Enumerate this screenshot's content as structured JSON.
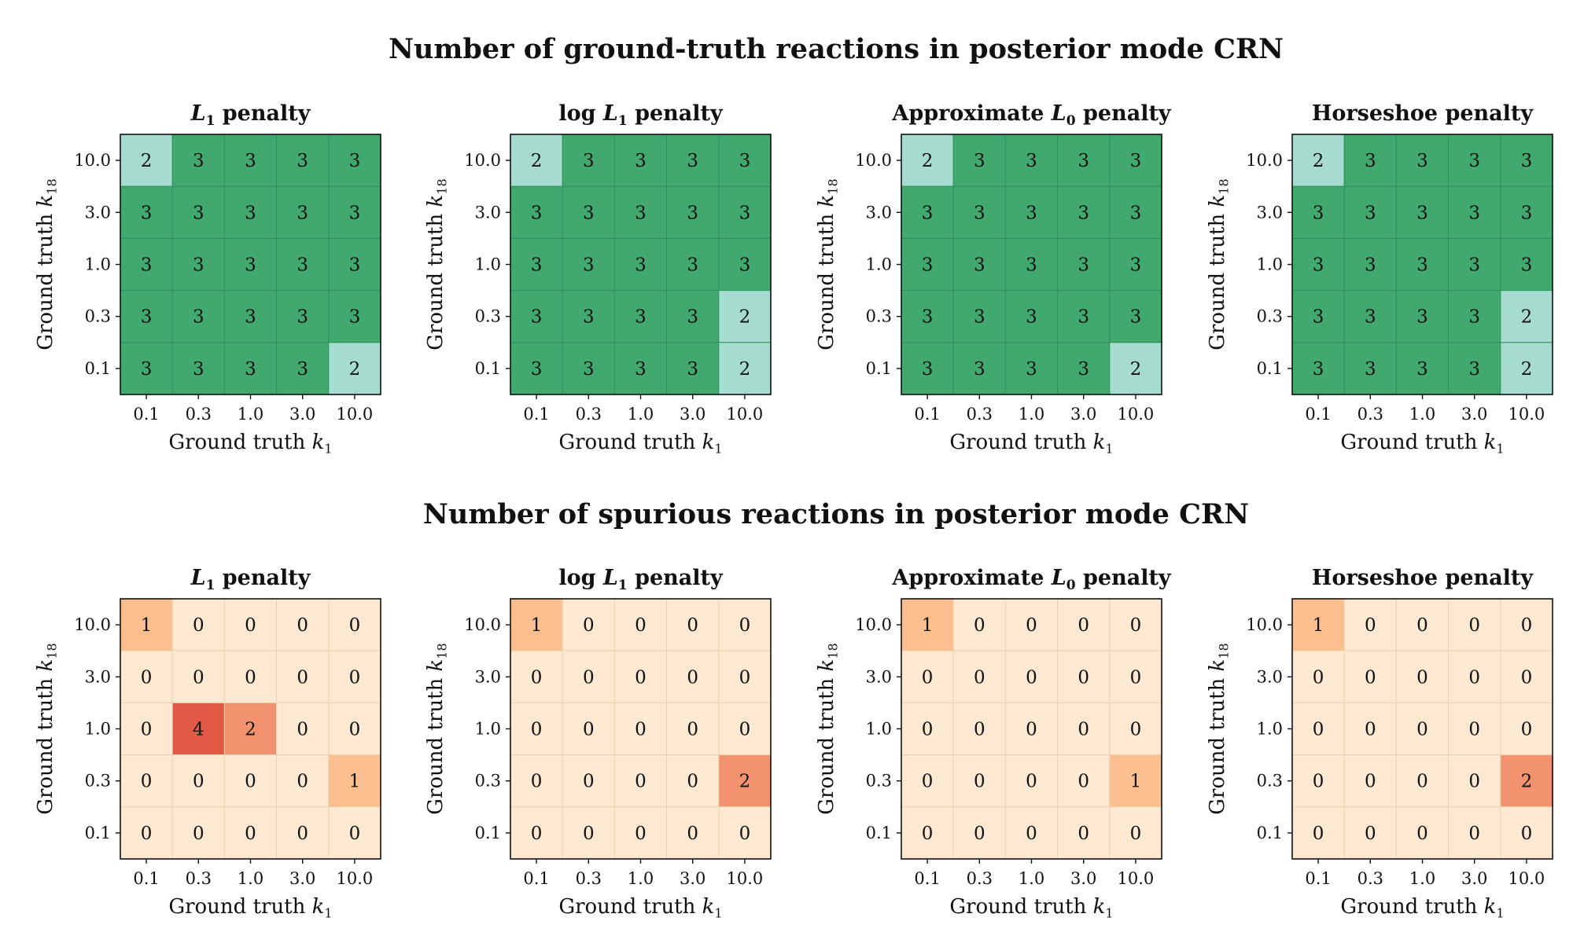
{
  "figure": {
    "row_titles": [
      "Number of ground-truth reactions in posterior mode CRN",
      "Number of spurious reactions in posterior mode CRN"
    ]
  },
  "color_scales": {
    "ground_truth": {
      "2": "#a6dccf",
      "3": "#41a96e",
      "cell_border": "#2f8f5c"
    },
    "spurious": {
      "0": "#fde9d1",
      "1": "#fbbe8e",
      "2": "#f2926f",
      "4": "#e25a46",
      "cell_border": "#ecd2b1"
    }
  },
  "chart_data": [
    {
      "type": "heatmap",
      "row": 0,
      "scale": "ground_truth",
      "title_parts": [
        {
          "t": "",
          "i": false
        },
        {
          "t": "L",
          "i": true,
          "sub": "1"
        },
        {
          "t": " penalty",
          "i": false
        }
      ],
      "xlabel": "Ground truth k",
      "xlabel_sub": "1",
      "ylabel": "Ground truth k",
      "ylabel_sub": "18",
      "x_ticks": [
        "0.1",
        "0.3",
        "1.0",
        "3.0",
        "10.0"
      ],
      "y_ticks": [
        "10.0",
        "3.0",
        "1.0",
        "0.3",
        "0.1"
      ],
      "values": [
        [
          2,
          3,
          3,
          3,
          3
        ],
        [
          3,
          3,
          3,
          3,
          3
        ],
        [
          3,
          3,
          3,
          3,
          3
        ],
        [
          3,
          3,
          3,
          3,
          3
        ],
        [
          3,
          3,
          3,
          3,
          2
        ]
      ]
    },
    {
      "type": "heatmap",
      "row": 0,
      "scale": "ground_truth",
      "title_parts": [
        {
          "t": "log ",
          "i": false
        },
        {
          "t": "L",
          "i": true,
          "sub": "1"
        },
        {
          "t": " penalty",
          "i": false
        }
      ],
      "xlabel": "Ground truth k",
      "xlabel_sub": "1",
      "ylabel": "Ground truth k",
      "ylabel_sub": "18",
      "x_ticks": [
        "0.1",
        "0.3",
        "1.0",
        "3.0",
        "10.0"
      ],
      "y_ticks": [
        "10.0",
        "3.0",
        "1.0",
        "0.3",
        "0.1"
      ],
      "values": [
        [
          2,
          3,
          3,
          3,
          3
        ],
        [
          3,
          3,
          3,
          3,
          3
        ],
        [
          3,
          3,
          3,
          3,
          3
        ],
        [
          3,
          3,
          3,
          3,
          2
        ],
        [
          3,
          3,
          3,
          3,
          2
        ]
      ]
    },
    {
      "type": "heatmap",
      "row": 0,
      "scale": "ground_truth",
      "title_parts": [
        {
          "t": "Approximate ",
          "i": false
        },
        {
          "t": "L",
          "i": true,
          "sub": "0"
        },
        {
          "t": " penalty",
          "i": false
        }
      ],
      "xlabel": "Ground truth k",
      "xlabel_sub": "1",
      "ylabel": "Ground truth k",
      "ylabel_sub": "18",
      "x_ticks": [
        "0.1",
        "0.3",
        "1.0",
        "3.0",
        "10.0"
      ],
      "y_ticks": [
        "10.0",
        "3.0",
        "1.0",
        "0.3",
        "0.1"
      ],
      "values": [
        [
          2,
          3,
          3,
          3,
          3
        ],
        [
          3,
          3,
          3,
          3,
          3
        ],
        [
          3,
          3,
          3,
          3,
          3
        ],
        [
          3,
          3,
          3,
          3,
          3
        ],
        [
          3,
          3,
          3,
          3,
          2
        ]
      ]
    },
    {
      "type": "heatmap",
      "row": 0,
      "scale": "ground_truth",
      "title_parts": [
        {
          "t": "Horseshoe penalty",
          "i": false
        }
      ],
      "xlabel": "Ground truth k",
      "xlabel_sub": "1",
      "ylabel": "Ground truth k",
      "ylabel_sub": "18",
      "x_ticks": [
        "0.1",
        "0.3",
        "1.0",
        "3.0",
        "10.0"
      ],
      "y_ticks": [
        "10.0",
        "3.0",
        "1.0",
        "0.3",
        "0.1"
      ],
      "values": [
        [
          2,
          3,
          3,
          3,
          3
        ],
        [
          3,
          3,
          3,
          3,
          3
        ],
        [
          3,
          3,
          3,
          3,
          3
        ],
        [
          3,
          3,
          3,
          3,
          2
        ],
        [
          3,
          3,
          3,
          3,
          2
        ]
      ]
    },
    {
      "type": "heatmap",
      "row": 1,
      "scale": "spurious",
      "title_parts": [
        {
          "t": "",
          "i": false
        },
        {
          "t": "L",
          "i": true,
          "sub": "1"
        },
        {
          "t": " penalty",
          "i": false
        }
      ],
      "xlabel": "Ground truth k",
      "xlabel_sub": "1",
      "ylabel": "Ground truth k",
      "ylabel_sub": "18",
      "x_ticks": [
        "0.1",
        "0.3",
        "1.0",
        "3.0",
        "10.0"
      ],
      "y_ticks": [
        "10.0",
        "3.0",
        "1.0",
        "0.3",
        "0.1"
      ],
      "values": [
        [
          1,
          0,
          0,
          0,
          0
        ],
        [
          0,
          0,
          0,
          0,
          0
        ],
        [
          0,
          4,
          2,
          0,
          0
        ],
        [
          0,
          0,
          0,
          0,
          1
        ],
        [
          0,
          0,
          0,
          0,
          0
        ]
      ]
    },
    {
      "type": "heatmap",
      "row": 1,
      "scale": "spurious",
      "title_parts": [
        {
          "t": "log ",
          "i": false
        },
        {
          "t": "L",
          "i": true,
          "sub": "1"
        },
        {
          "t": " penalty",
          "i": false
        }
      ],
      "xlabel": "Ground truth k",
      "xlabel_sub": "1",
      "ylabel": "Ground truth k",
      "ylabel_sub": "18",
      "x_ticks": [
        "0.1",
        "0.3",
        "1.0",
        "3.0",
        "10.0"
      ],
      "y_ticks": [
        "10.0",
        "3.0",
        "1.0",
        "0.3",
        "0.1"
      ],
      "values": [
        [
          1,
          0,
          0,
          0,
          0
        ],
        [
          0,
          0,
          0,
          0,
          0
        ],
        [
          0,
          0,
          0,
          0,
          0
        ],
        [
          0,
          0,
          0,
          0,
          2
        ],
        [
          0,
          0,
          0,
          0,
          0
        ]
      ]
    },
    {
      "type": "heatmap",
      "row": 1,
      "scale": "spurious",
      "title_parts": [
        {
          "t": "Approximate ",
          "i": false
        },
        {
          "t": "L",
          "i": true,
          "sub": "0"
        },
        {
          "t": " penalty",
          "i": false
        }
      ],
      "xlabel": "Ground truth k",
      "xlabel_sub": "1",
      "ylabel": "Ground truth k",
      "ylabel_sub": "18",
      "x_ticks": [
        "0.1",
        "0.3",
        "1.0",
        "3.0",
        "10.0"
      ],
      "y_ticks": [
        "10.0",
        "3.0",
        "1.0",
        "0.3",
        "0.1"
      ],
      "values": [
        [
          1,
          0,
          0,
          0,
          0
        ],
        [
          0,
          0,
          0,
          0,
          0
        ],
        [
          0,
          0,
          0,
          0,
          0
        ],
        [
          0,
          0,
          0,
          0,
          1
        ],
        [
          0,
          0,
          0,
          0,
          0
        ]
      ]
    },
    {
      "type": "heatmap",
      "row": 1,
      "scale": "spurious",
      "title_parts": [
        {
          "t": "Horseshoe penalty",
          "i": false
        }
      ],
      "xlabel": "Ground truth k",
      "xlabel_sub": "1",
      "ylabel": "Ground truth k",
      "ylabel_sub": "18",
      "x_ticks": [
        "0.1",
        "0.3",
        "1.0",
        "3.0",
        "10.0"
      ],
      "y_ticks": [
        "10.0",
        "3.0",
        "1.0",
        "0.3",
        "0.1"
      ],
      "values": [
        [
          1,
          0,
          0,
          0,
          0
        ],
        [
          0,
          0,
          0,
          0,
          0
        ],
        [
          0,
          0,
          0,
          0,
          0
        ],
        [
          0,
          0,
          0,
          0,
          2
        ],
        [
          0,
          0,
          0,
          0,
          0
        ]
      ]
    }
  ]
}
